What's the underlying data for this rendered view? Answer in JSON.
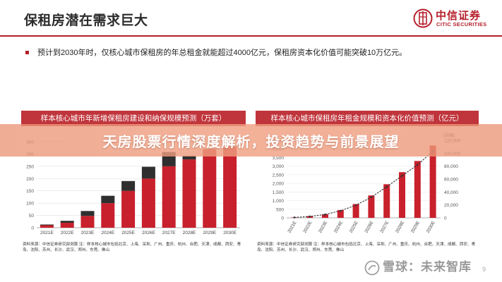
{
  "header": {
    "title": "保租房潜在需求巨大",
    "logo_cn": "中信证券",
    "logo_en": "CITIC SECURITIES"
  },
  "bullet": "预计到2030年时，仅核心城市保租房的年总租金就能超过4000亿元，保租房资本化价值可能突破10万亿元。",
  "banner": "天房股票行情深度解析，投资趋势与前景展望",
  "watermark": "雪球：未来智库",
  "page_number": "9",
  "colors": {
    "accent": "#b51f2a",
    "bar_dark": "#2f2f2f",
    "bar_red": "#c8202c",
    "panel_head": "#c0353c"
  },
  "chart_data": [
    {
      "type": "bar",
      "title": "样本核心城市年新增保租房建设和纳保规模预测（万套）",
      "categories": [
        "2021E",
        "2022E",
        "2023E",
        "2024E",
        "2025E",
        "2026E",
        "2027E",
        "2028E",
        "2029E",
        "2030E"
      ],
      "series": [
        {
          "values": [
            10,
            20,
            48,
            100,
            150,
            200,
            250,
            278,
            320,
            330
          ]
        },
        {
          "values": [
            3,
            8,
            20,
            30,
            40,
            48,
            58,
            15,
            0,
            0
          ]
        }
      ],
      "stacked": true,
      "ylim": [
        0,
        350
      ],
      "yticks": [
        0,
        50,
        100,
        150,
        200,
        250,
        300,
        350
      ],
      "source": "资料来源：中信证券研究部测算 注：样本核心城市包括北京、上海、深圳、广州、重庆、杭州、合肥、天津、成都、西安、青岛、沈阳、苏州、长沙、武汉、郑州、东莞、佛山"
    },
    {
      "type": "bar+line",
      "title": "样本核心城市保租房年租金规模和资本化价值预测（亿元）",
      "categories": [
        "2021E",
        "2022E",
        "2023E",
        "2024E",
        "2025E",
        "2026E",
        "2027E",
        "2028E",
        "2029E",
        "2030E"
      ],
      "series": [
        {
          "type": "bar",
          "axis": "left",
          "values": [
            25,
            100,
            210,
            450,
            800,
            1300,
            1950,
            2650,
            3300,
            4200
          ]
        },
        {
          "type": "line",
          "axis": "right",
          "values": [
            600,
            2200,
            5200,
            11000,
            19500,
            32000,
            48000,
            65000,
            82000,
            103000
          ]
        }
      ],
      "ylim_left": [
        0,
        4500
      ],
      "yticks_left": [
        0,
        500,
        1000,
        1500,
        2000,
        2500,
        3000,
        3500,
        4000,
        4500
      ],
      "ylim_right": [
        0,
        120000
      ],
      "yticks_right": [
        0,
        20000,
        40000,
        60000,
        80000,
        100000,
        120000
      ],
      "right_axis_label": "(右轴)",
      "source": "资料来源：中信证券研究部测算 注：样本核心城市包括北京、上海、深圳、广州、重庆、杭州、合肥、天津、成都、西安、青岛、沈阳、苏州、长沙、武汉、郑州、东莞、佛山"
    }
  ]
}
